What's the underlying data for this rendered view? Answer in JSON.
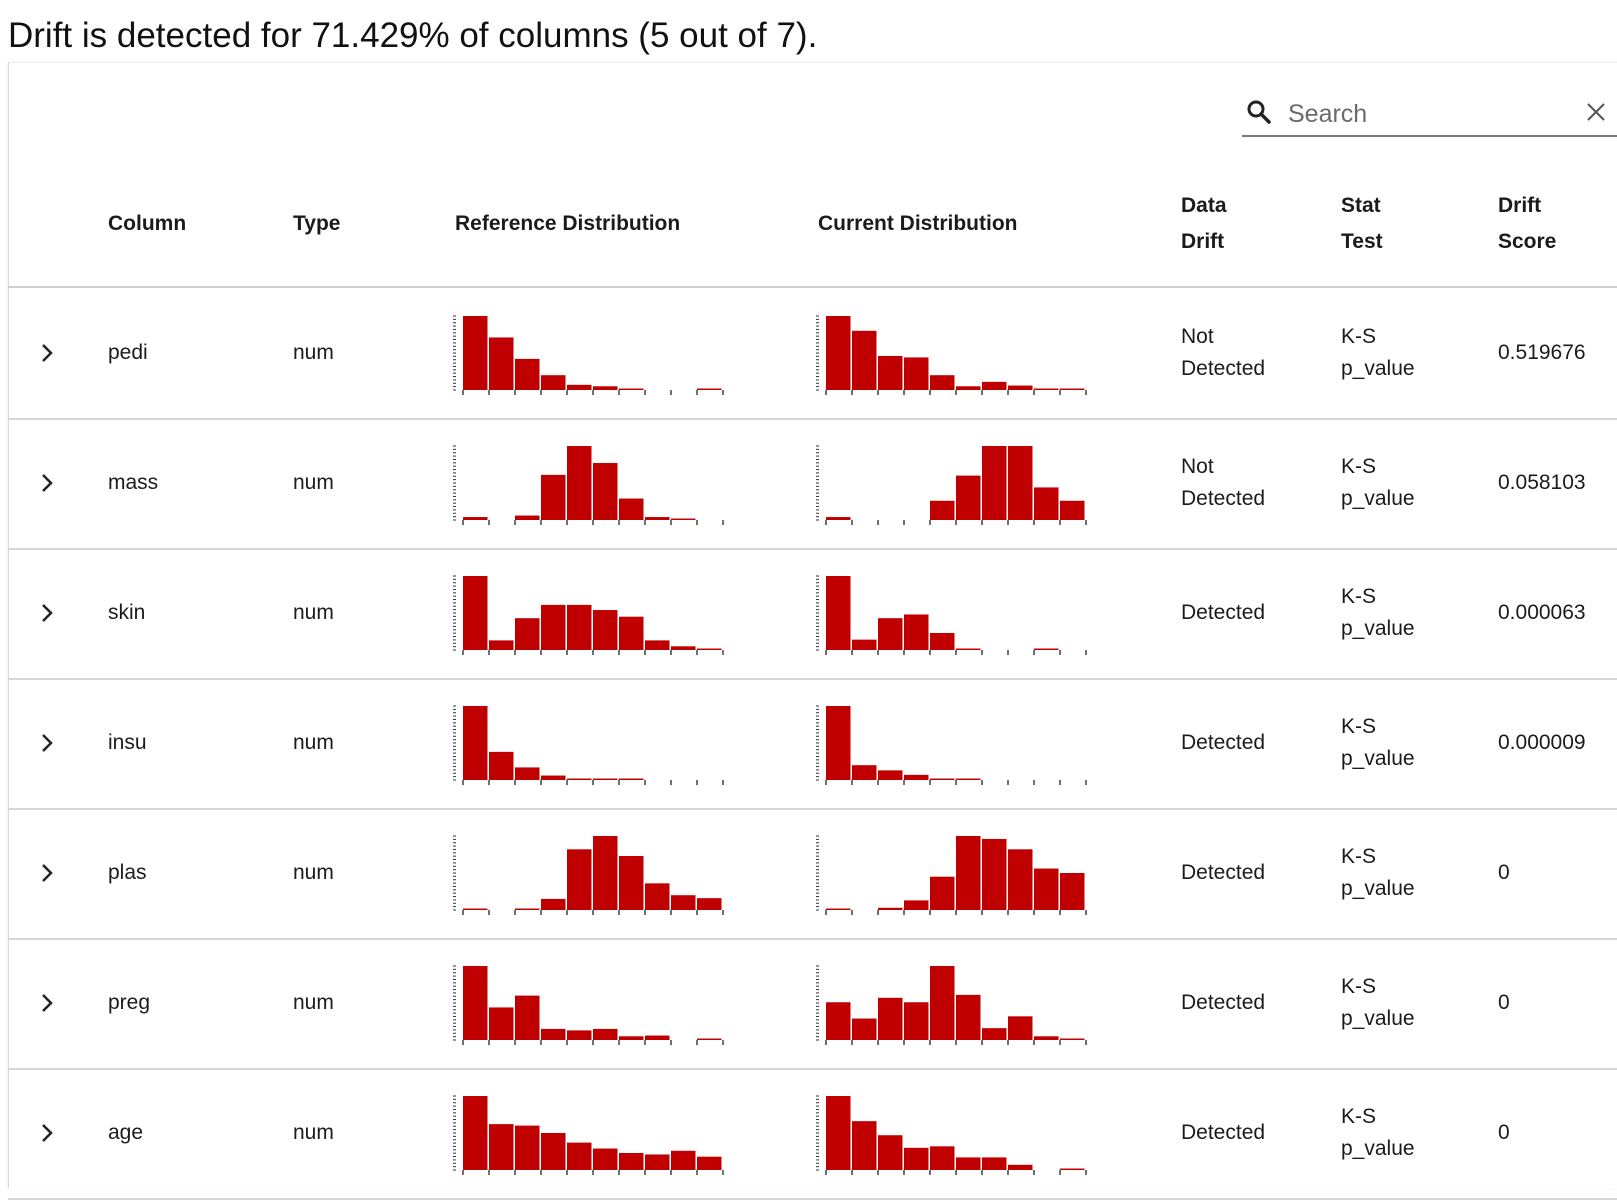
{
  "summary": "Drift is detected for 71.429% of columns (5 out of 7).",
  "search": {
    "placeholder": "Search"
  },
  "headers": {
    "column": "Column",
    "type": "Type",
    "reference": "Reference Distribution",
    "current": "Current Distribution",
    "drift_1": "Data",
    "drift_2": "Drift",
    "stat_1": "Stat",
    "stat_2": "Test",
    "score_1": "Drift",
    "score_2": "Score"
  },
  "colors": {
    "bar": "#c00000",
    "axis": "#333333",
    "rule": "#d6d6d6"
  },
  "icons": {
    "search": "search-icon",
    "clear": "close-icon",
    "expand": "chevron-right-icon"
  },
  "rows": [
    {
      "column": "pedi",
      "type": "num",
      "drift_1": "Not",
      "drift_2": "Detected",
      "stat_1": "K-S",
      "stat_2": "p_value",
      "score": "0.519676",
      "reference": [
        100,
        71,
        42,
        20,
        7,
        5,
        2,
        0,
        0,
        2
      ],
      "current": [
        100,
        80,
        46,
        44,
        20,
        5,
        11,
        6,
        2,
        2
      ]
    },
    {
      "column": "mass",
      "type": "num",
      "drift_1": "Not",
      "drift_2": "Detected",
      "stat_1": "K-S",
      "stat_2": "p_value",
      "score": "0.058103",
      "reference": [
        4,
        0,
        6,
        61,
        100,
        77,
        29,
        4,
        2,
        0
      ],
      "current": [
        4,
        0,
        0,
        0,
        26,
        60,
        100,
        100,
        44,
        26
      ]
    },
    {
      "column": "skin",
      "type": "num",
      "drift_1": "",
      "drift_2": "Detected",
      "stat_1": "K-S",
      "stat_2": "p_value",
      "score": "0.000063",
      "reference": [
        100,
        13,
        43,
        61,
        61,
        54,
        45,
        13,
        5,
        2
      ],
      "current": [
        100,
        14,
        43,
        48,
        23,
        2,
        0,
        0,
        2,
        0
      ]
    },
    {
      "column": "insu",
      "type": "num",
      "drift_1": "",
      "drift_2": "Detected",
      "stat_1": "K-S",
      "stat_2": "p_value",
      "score": "0.000009",
      "reference": [
        100,
        38,
        17,
        6,
        2,
        2,
        2,
        0,
        0,
        0
      ],
      "current": [
        100,
        20,
        13,
        7,
        2,
        2,
        0,
        0,
        0,
        0
      ]
    },
    {
      "column": "plas",
      "type": "num",
      "drift_1": "",
      "drift_2": "Detected",
      "stat_1": "K-S",
      "stat_2": "p_value",
      "score": "0",
      "reference": [
        2,
        0,
        2,
        15,
        82,
        100,
        73,
        36,
        20,
        16
      ],
      "current": [
        2,
        0,
        3,
        13,
        45,
        100,
        96,
        82,
        56,
        50
      ]
    },
    {
      "column": "preg",
      "type": "num",
      "drift_1": "",
      "drift_2": "Detected",
      "stat_1": "K-S",
      "stat_2": "p_value",
      "score": "0",
      "reference": [
        100,
        44,
        60,
        15,
        13,
        15,
        5,
        6,
        0,
        2
      ],
      "current": [
        51,
        29,
        57,
        51,
        100,
        61,
        16,
        32,
        5,
        2
      ]
    },
    {
      "column": "age",
      "type": "num",
      "drift_1": "",
      "drift_2": "Detected",
      "stat_1": "K-S",
      "stat_2": "p_value",
      "score": "0",
      "reference": [
        100,
        62,
        60,
        50,
        37,
        29,
        23,
        21,
        26,
        18
      ],
      "current": [
        100,
        66,
        47,
        30,
        32,
        17,
        17,
        7,
        0,
        2
      ]
    }
  ]
}
